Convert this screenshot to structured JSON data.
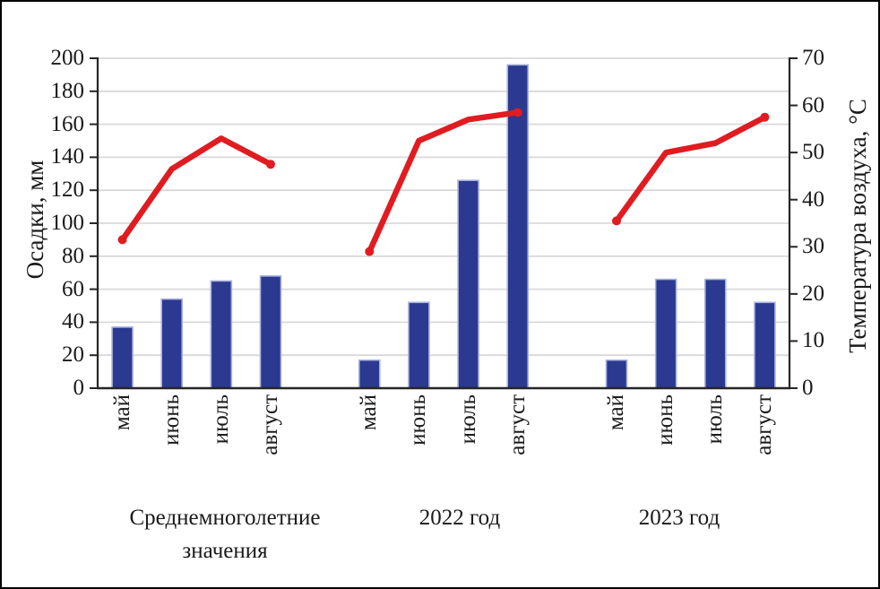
{
  "figure": {
    "background": "#ffffff",
    "border_color": "#000000"
  },
  "chart_data": {
    "type": "combo: bar (precipitation, left axis) + line (air temperature, right axis)",
    "title": "",
    "months": [
      "май",
      "июнь",
      "июль",
      "август"
    ],
    "groups": [
      {
        "label": "Среднемноголетние значения",
        "label_lines": [
          "Среднемноголетние",
          "значения"
        ],
        "precipitation_mm": [
          37,
          54,
          65,
          68
        ],
        "temperature_c": [
          31.5,
          46.5,
          53,
          47.5
        ]
      },
      {
        "label": "2022 год",
        "precipitation_mm": [
          17,
          52,
          126,
          196
        ],
        "temperature_c": [
          29,
          52.5,
          57,
          58.5
        ]
      },
      {
        "label": "2023 год",
        "precipitation_mm": [
          17,
          66,
          66,
          52
        ],
        "temperature_c": [
          35.5,
          50,
          52,
          57.5
        ]
      }
    ],
    "left_axis": {
      "label": "Осадки, мм",
      "min": 0,
      "max": 200,
      "step": 20
    },
    "right_axis": {
      "label": "Температура воздуха, °C",
      "min": 0,
      "max": 70,
      "step": 10
    },
    "series": [
      {
        "name": "Осадки",
        "type": "bar",
        "axis": "left",
        "color": "#2b3990",
        "edge_color": "#a9b2dc"
      },
      {
        "name": "Температура воздуха",
        "type": "line",
        "axis": "right",
        "color": "#e01c21"
      }
    ],
    "grid": true,
    "grid_color": "#d9d9d9",
    "axis_color": "#262626",
    "legend": false
  }
}
